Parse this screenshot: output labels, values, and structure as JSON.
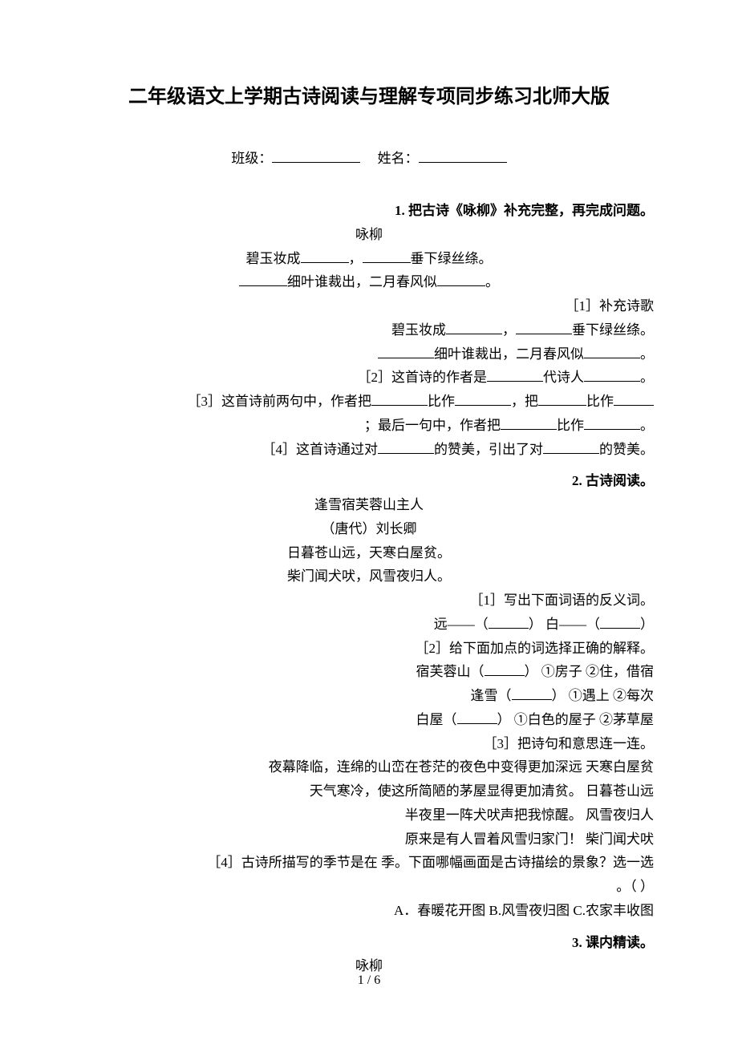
{
  "title": "二年级语文上学期古诗阅读与理解专项同步练习北师大版",
  "classLabel": "班级：",
  "nameLabel": "姓名：",
  "q1": {
    "heading": "1.  把古诗《咏柳》补充完整，再完成问题。",
    "poemTitle": "咏柳",
    "l1a": "碧玉妆成",
    "l1b": "，",
    "l1c": "垂下绿丝绦。",
    "l2a": "细叶谁裁出，二月春风似",
    "l2b": "。",
    "sub1": "［1］补充诗歌",
    "s1a": "碧玉妆成",
    "s1b": "，",
    "s1c": "垂下绿丝绦。",
    "s2a": "细叶谁裁出，二月春风似",
    "s2b": "。",
    "sub2a": "［2］这首诗的作者是",
    "sub2b": "代诗人",
    "sub2c": "。",
    "sub3a": "［3］这首诗前两句中，作者把",
    "sub3b": "比作",
    "sub3c": "，把",
    "sub3d": "比作",
    "sub3line2a": "；最后一句中，作者把",
    "sub3line2b": "比作",
    "sub3line2c": "。",
    "sub4a": "［4］这首诗通过对",
    "sub4b": "的赞美，引出了对",
    "sub4c": "的赞美。"
  },
  "q2": {
    "heading": "2.  古诗阅读。",
    "poemTitle": "逢雪宿芙蓉山主人",
    "author": "（唐代）刘长卿",
    "p1": "日暮苍山远，天寒白屋贫。",
    "p2": "柴门闻犬吠，风雪夜归人。",
    "sub1": "［1］写出下面词语的反义词。",
    "ant1a": "远——（",
    "ant1b": "）   白——（",
    "ant1c": "）",
    "sub2": "［2］给下面加点的词选择正确的解释。",
    "opt1a": "宿芙蓉山（",
    "opt1b": "）  ①房子  ②住，借宿",
    "opt2a": "逢雪（",
    "opt2b": "）  ①遇上  ②每次",
    "opt3a": "白屋（",
    "opt3b": "）  ①白色的屋子  ②茅草屋",
    "sub3": "［3］把诗句和意思连一连。",
    "m1": "夜幕降临，连绵的山峦在苍茫的夜色中变得更加深远   天寒白屋贫",
    "m2": "天气寒冷，使这所简陋的茅屋显得更加清贫。   日暮苍山远",
    "m3": "半夜里一阵犬吠声把我惊醒。   风雪夜归人",
    "m4": "原来是有人冒着风雪归家门！   柴门闻犬吠",
    "sub4l1": "［4］古诗所描写的季节是在    季。下面哪幅画面是古诗描绘的景象？选一选",
    "sub4l2": "。（    ）",
    "choices": "A．春暖花开图      B.风雪夜归图      C.农家丰收图"
  },
  "q3": {
    "heading": "3.  课内精读。",
    "poemTitle": "咏柳"
  },
  "footer": "1 / 6"
}
